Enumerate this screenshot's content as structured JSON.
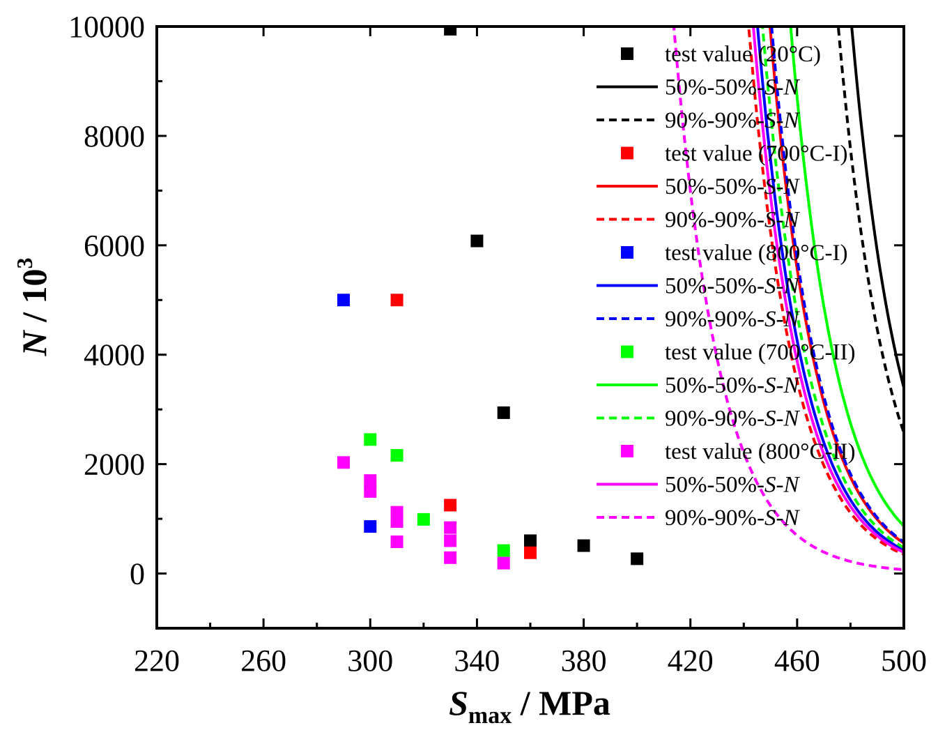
{
  "chart_data": {
    "type": "scatter",
    "xlabel": {
      "main": "S",
      "sub": "max",
      "rest": " / MPa"
    },
    "ylabel": {
      "main": "N",
      "rest": " / 10",
      "sup": "3"
    },
    "xlim": [
      220,
      500
    ],
    "ylim": [
      -1000,
      10000
    ],
    "xticks": [
      220,
      260,
      300,
      340,
      380,
      420,
      460,
      500
    ],
    "yticks": [
      0,
      2000,
      4000,
      6000,
      8000,
      10000
    ],
    "xtick_labels": [
      "220",
      "260",
      "300",
      "340",
      "380",
      "420",
      "460",
      "500"
    ],
    "ytick_labels": [
      "0",
      "2000",
      "4000",
      "6000",
      "8000",
      "10000"
    ],
    "legend_position": "top-right",
    "series": [
      {
        "name": "test value (20°C)",
        "color": "#000000",
        "points": [
          [
            330,
            9950
          ],
          [
            340,
            6080
          ],
          [
            350,
            2940
          ],
          [
            360,
            600
          ],
          [
            380,
            510
          ],
          [
            400,
            270
          ]
        ],
        "curve_50": {
          "label": "50%-50%-S-N",
          "a": 12.2636,
          "k": 0.0552
        },
        "curve_90": {
          "label": "90%-90%-S-N",
          "a": 11.9856,
          "k": 0.0552
        }
      },
      {
        "name": "test value (700°C-I)",
        "color": "#ff0000",
        "points": [
          [
            310,
            5000
          ],
          [
            330,
            1250
          ],
          [
            360,
            380
          ]
        ],
        "curve_50": {
          "label": "50%-50%-S-N",
          "a": 10.9336,
          "k": 0.0576
        },
        "curve_90": {
          "label": "90%-90%-S-N",
          "a": 10.4729,
          "k": 0.0576
        }
      },
      {
        "name": "test value (800°C-I)",
        "color": "#0000ff",
        "points": [
          [
            290,
            5000
          ],
          [
            300,
            860
          ]
        ],
        "curve_50": {
          "label": "50%-50%-S-N",
          "a": 10.6651,
          "k": 0.0576
        },
        "curve_90": {
          "label": "90%-90%-S-N",
          "a": 10.9672,
          "k": 0.0576
        }
      },
      {
        "name": "test value (700°C-II)",
        "color": "#00ff00",
        "points": [
          [
            300,
            2450
          ],
          [
            310,
            2160
          ],
          [
            320,
            990
          ],
          [
            350,
            420
          ]
        ],
        "curve_50": {
          "label": "50%-50%-S-N",
          "a": 11.3792,
          "k": 0.0576
        },
        "curve_90": {
          "label": "90%-90%-S-N",
          "a": 10.772,
          "k": 0.0576
        }
      },
      {
        "name": "test value (800°C-II)",
        "color": "#ff00ff",
        "points": [
          [
            290,
            2030
          ],
          [
            300,
            1700
          ],
          [
            300,
            1500
          ],
          [
            310,
            1120
          ],
          [
            310,
            950
          ],
          [
            310,
            580
          ],
          [
            330,
            840
          ],
          [
            330,
            600
          ],
          [
            330,
            290
          ],
          [
            350,
            190
          ]
        ],
        "curve_50": {
          "label": "50%-50%-S-N",
          "a": 10.5731,
          "k": 0.0576
        },
        "curve_90": {
          "label": "90%-90%-S-N",
          "a": 8.8568,
          "k": 0.0576
        }
      }
    ]
  }
}
